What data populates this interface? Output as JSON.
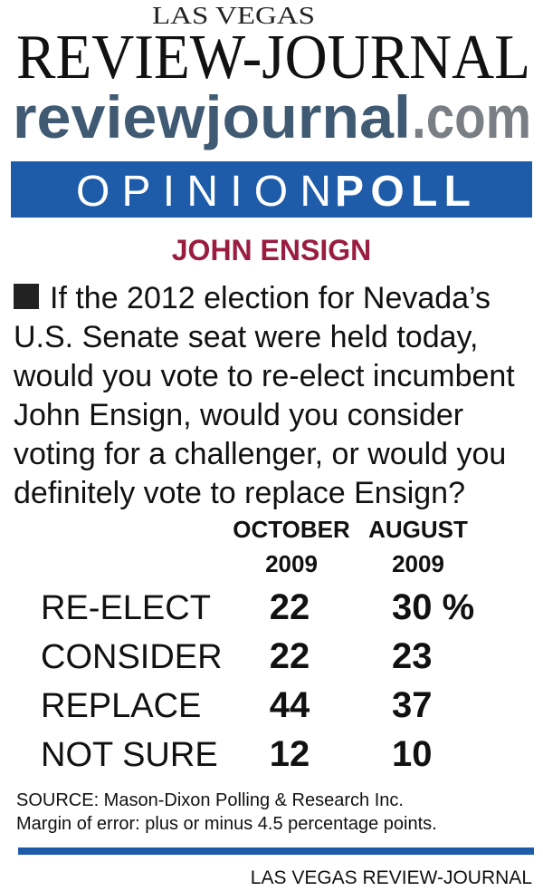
{
  "header": {
    "kicker": "LAS VEGAS",
    "masthead": "REVIEW-JOURNAL",
    "site_name": "reviewjournal",
    "site_suffix": ".com"
  },
  "banner": {
    "light": "OPINION",
    "bold": "POLL"
  },
  "title": "JOHN ENSIGN",
  "question": [
    "If the 2012 election for Nevada’s",
    "U.S. Senate seat were held today,",
    "would you vote to re-elect incumbent",
    "John Ensign, would you consider",
    "voting for a challenger, or would you",
    "definitely vote to replace Ensign?"
  ],
  "table": {
    "columns": [
      [
        "OCTOBER",
        "2009"
      ],
      [
        "AUGUST",
        "2009"
      ]
    ],
    "rows": [
      [
        "RE-ELECT",
        "22",
        "30 %"
      ],
      [
        "CONSIDER",
        "22",
        "23"
      ],
      [
        "REPLACE",
        "44",
        "37"
      ],
      [
        "NOT SURE",
        "12",
        "10"
      ]
    ]
  },
  "source": [
    "SOURCE: Mason-Dixon Polling & Research Inc.",
    "Margin of error: plus or minus 4.5 percentage points."
  ],
  "footer": "LAS VEGAS REVIEW-JOURNAL"
}
